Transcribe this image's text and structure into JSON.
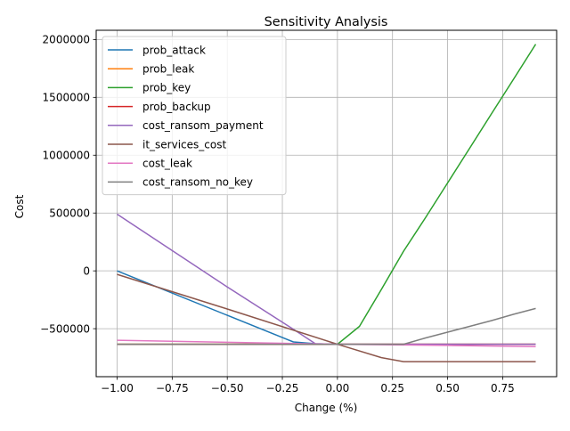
{
  "chart_data": {
    "type": "line",
    "title": "Sensitivity Analysis",
    "xlabel": "Change (%)",
    "ylabel": "Cost",
    "xlim": [
      -1.095,
      0.995
    ],
    "ylim": [
      -915000,
      2080000
    ],
    "xticks": [
      -1.0,
      -0.75,
      -0.5,
      -0.25,
      0.0,
      0.25,
      0.5,
      0.75
    ],
    "xtick_labels": [
      "−1.00",
      "−0.75",
      "−0.50",
      "−0.25",
      "0.00",
      "0.25",
      "0.50",
      "0.75"
    ],
    "yticks": [
      -500000,
      0,
      500000,
      1000000,
      1500000,
      2000000
    ],
    "ytick_labels": [
      "−500000",
      "0",
      "500000",
      "1000000",
      "1500000",
      "2000000"
    ],
    "grid": true,
    "legend_position": "top-left",
    "series": [
      {
        "name": "prob_attack",
        "color": "#1f77b4",
        "x": [
          -1.0,
          -0.2,
          -0.1,
          0.0,
          0.1,
          0.2,
          0.3,
          0.4,
          0.5,
          0.6,
          0.7,
          0.8,
          0.9
        ],
        "y": [
          0,
          -615000,
          -630000,
          -635000,
          -635000,
          -635000,
          -635000,
          -635000,
          -635000,
          -635000,
          -635000,
          -635000,
          -635000
        ]
      },
      {
        "name": "prob_leak",
        "color": "#ff7f0e",
        "x": [
          -1.0,
          -0.5,
          0.0,
          0.5,
          0.9
        ],
        "y": [
          -635000,
          -635000,
          -635000,
          -635000,
          -635000
        ]
      },
      {
        "name": "prob_key",
        "color": "#2ca02c",
        "x": [
          -1.0,
          -0.5,
          0.0,
          0.1,
          0.2,
          0.3,
          0.4,
          0.5,
          0.6,
          0.7,
          0.8,
          0.9
        ],
        "y": [
          -635000,
          -635000,
          -635000,
          -480000,
          -160000,
          170000,
          460000,
          760000,
          1060000,
          1360000,
          1660000,
          1960000
        ]
      },
      {
        "name": "prob_backup",
        "color": "#d62728",
        "x": [
          -1.0,
          -0.5,
          0.0,
          0.5,
          0.9
        ],
        "y": [
          -635000,
          -635000,
          -635000,
          -635000,
          -635000
        ]
      },
      {
        "name": "cost_ransom_payment",
        "color": "#9467bd",
        "x": [
          -1.0,
          -0.5,
          -0.2,
          -0.1,
          0.0,
          0.5,
          0.9
        ],
        "y": [
          490000,
          -140000,
          -505000,
          -630000,
          -635000,
          -635000,
          -635000
        ]
      },
      {
        "name": "it_services_cost",
        "color": "#8c564b",
        "x": [
          -1.0,
          -0.5,
          0.0,
          0.2,
          0.3,
          0.5,
          0.9
        ],
        "y": [
          -30000,
          -330000,
          -635000,
          -750000,
          -785000,
          -785000,
          -785000
        ]
      },
      {
        "name": "cost_leak",
        "color": "#e377c2",
        "x": [
          -1.0,
          -0.5,
          0.0,
          0.5,
          0.9
        ],
        "y": [
          -600000,
          -618000,
          -635000,
          -645000,
          -655000
        ]
      },
      {
        "name": "cost_ransom_no_key",
        "color": "#7f7f7f",
        "x": [
          -1.0,
          -0.5,
          0.0,
          0.3,
          0.4,
          0.5,
          0.6,
          0.7,
          0.8,
          0.9
        ],
        "y": [
          -635000,
          -635000,
          -635000,
          -635000,
          -580000,
          -530000,
          -480000,
          -430000,
          -375000,
          -325000
        ]
      }
    ]
  }
}
